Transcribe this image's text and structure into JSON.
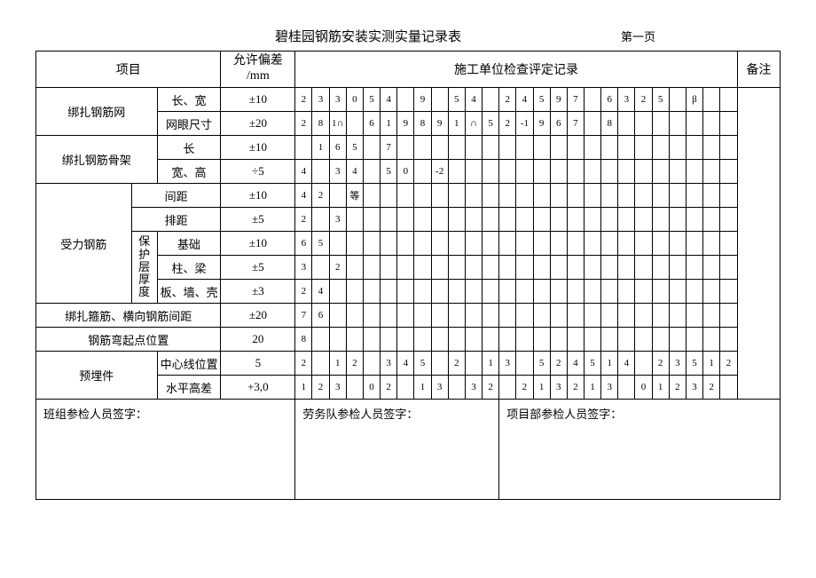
{
  "title": "碧桂园钢筋安装实测实量记录表",
  "page_label": "第一页",
  "headers": {
    "item": "项目",
    "tolerance": "允许偏差\n/mm",
    "record": "施工单位检查评定记录",
    "remark": "备注"
  },
  "rows": [
    {
      "g1": "绑扎钢筋网",
      "g1_rs": 2,
      "sub": "长、宽",
      "tol": "±10",
      "d": [
        "2",
        "3",
        "3",
        "0",
        "5",
        "4",
        "",
        "9",
        "",
        "5",
        "4",
        "",
        "2",
        "4",
        "5",
        "9",
        "7",
        "",
        "6",
        "3",
        "2",
        "5",
        "",
        "β",
        "",
        ""
      ]
    },
    {
      "sub": "网眼尺寸",
      "tol": "±20",
      "d": [
        "2",
        "8",
        "1∩",
        "",
        "6",
        "1",
        "9",
        "8",
        "9",
        "1",
        "∩",
        "5",
        "2",
        "-1",
        "9",
        "6",
        "7",
        "",
        "8",
        "",
        "",
        "",
        "",
        "",
        "",
        ""
      ]
    },
    {
      "g1": "绑扎钢筋骨架",
      "g1_rs": 2,
      "sub": "长",
      "tol": "±10",
      "d": [
        "",
        "1",
        "6",
        "5",
        "",
        "7",
        "",
        "",
        "",
        "",
        "",
        "",
        "",
        "",
        "",
        "",
        "",
        "",
        "",
        "",
        "",
        "",
        "",
        "",
        "",
        ""
      ]
    },
    {
      "sub": "宽、高",
      "tol": "÷5",
      "d": [
        "4",
        "",
        "3",
        "4",
        "",
        "5",
        "0",
        "",
        "-2",
        "",
        "",
        "",
        "",
        "",
        "",
        "",
        "",
        "",
        "",
        "",
        "",
        "",
        "",
        "",
        "",
        ""
      ]
    },
    {
      "g1": "受力钢筋",
      "g1_rs": 5,
      "sub": "间距",
      "tol": "±10",
      "d": [
        "4",
        "2",
        "",
        "等",
        "",
        "",
        "",
        "",
        "",
        "",
        "",
        "",
        "",
        "",
        "",
        "",
        "",
        "",
        "",
        "",
        "",
        "",
        "",
        "",
        "",
        ""
      ]
    },
    {
      "sub": "排距",
      "tol": "±5",
      "d": [
        "2",
        "",
        "3",
        "",
        "",
        "",
        "",
        "",
        "",
        "",
        "",
        "",
        "",
        "",
        "",
        "",
        "",
        "",
        "",
        "",
        "",
        "",
        "",
        "",
        "",
        ""
      ]
    },
    {
      "g2": "保护层厚度",
      "g2_rs": 3,
      "sub": "基础",
      "tol": "±10",
      "d": [
        "6",
        "5",
        "",
        "",
        "",
        "",
        "",
        "",
        "",
        "",
        "",
        "",
        "",
        "",
        "",
        "",
        "",
        "",
        "",
        "",
        "",
        "",
        "",
        "",
        "",
        ""
      ]
    },
    {
      "sub": "柱、梁",
      "tol": "±5",
      "d": [
        "3",
        "",
        "2",
        "",
        "",
        "",
        "",
        "",
        "",
        "",
        "",
        "",
        "",
        "",
        "",
        "",
        "",
        "",
        "",
        "",
        "",
        "",
        "",
        "",
        "",
        ""
      ]
    },
    {
      "sub": "板、墙、壳",
      "tol": "±3",
      "d": [
        "2",
        "4",
        "",
        "",
        "",
        "",
        "",
        "",
        "",
        "",
        "",
        "",
        "",
        "",
        "",
        "",
        "",
        "",
        "",
        "",
        "",
        "",
        "",
        "",
        "",
        ""
      ]
    },
    {
      "full": "绑扎箍筋、横向钢筋间距",
      "tol": "±20",
      "d": [
        "7",
        "6",
        "",
        "",
        "",
        "",
        "",
        "",
        "",
        "",
        "",
        "",
        "",
        "",
        "",
        "",
        "",
        "",
        "",
        "",
        "",
        "",
        "",
        "",
        "",
        ""
      ]
    },
    {
      "full": "钢筋弯起点位置",
      "tol": "20",
      "d": [
        "8",
        "",
        "",
        "",
        "",
        "",
        "",
        "",
        "",
        "",
        "",
        "",
        "",
        "",
        "",
        "",
        "",
        "",
        "",
        "",
        "",
        "",
        "",
        "",
        "",
        ""
      ]
    },
    {
      "g1": "预埋件",
      "g1_rs": 2,
      "sub": "中心线位置",
      "tol": "5",
      "d": [
        "2",
        "",
        "1",
        "2",
        "",
        "3",
        "4",
        "5",
        "",
        "2",
        "",
        "1",
        "3",
        "",
        "5",
        "2",
        "4",
        "5",
        "1",
        "4",
        "",
        "2",
        "3",
        "5",
        "1",
        "2"
      ]
    },
    {
      "sub": "水平高差",
      "tol": "+3,0",
      "d": [
        "1",
        "2",
        "3",
        "",
        "0",
        "2",
        "",
        "1",
        "3",
        "",
        "3",
        "2",
        "",
        "2",
        "1",
        "3",
        "2",
        "1",
        "3",
        "",
        "0",
        "1",
        "2",
        "3",
        "2",
        ""
      ]
    }
  ],
  "sig": {
    "a": "班组参检人员签字：",
    "b": "劳务队参检人员签字：",
    "c": "项目部参检人员签字："
  }
}
